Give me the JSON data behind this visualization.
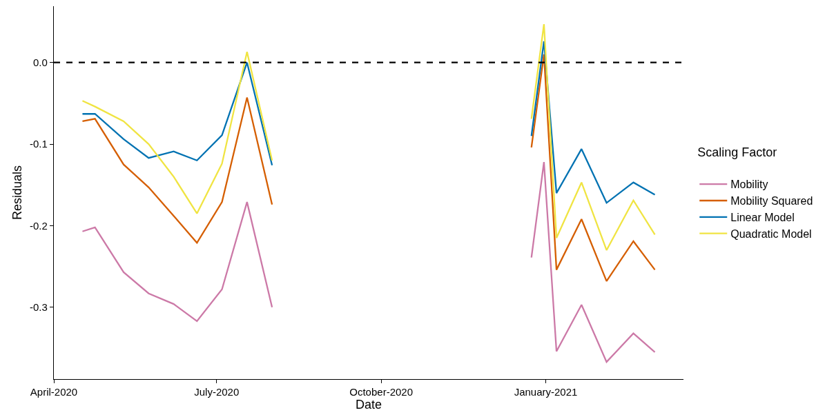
{
  "chart_data": {
    "type": "line",
    "xlabel": "Date",
    "ylabel": "Residuals",
    "legend_title": "Scaling Factor",
    "legend": "right",
    "x": [
      "2020-04-17",
      "2020-04-24",
      "2020-05-10",
      "2020-05-24",
      "2020-06-07",
      "2020-06-20",
      "2020-07-04",
      "2020-07-18",
      "2020-08-01",
      "2020-08-15",
      "2020-12-24",
      "2020-12-31",
      "2021-01-07",
      "2021-01-21",
      "2021-02-04",
      "2021-02-19",
      "2021-03-03"
    ],
    "series": [
      {
        "name": "Mobility",
        "color": "#cc79a7",
        "values": [
          -0.207,
          -0.202,
          -0.257,
          -0.283,
          -0.296,
          -0.317,
          -0.278,
          -0.171,
          -0.3,
          null,
          -0.239,
          -0.122,
          -0.354,
          -0.297,
          -0.367,
          -0.332,
          -0.355
        ]
      },
      {
        "name": "Mobility Squared",
        "color": "#d55e00",
        "values": [
          -0.072,
          -0.069,
          -0.125,
          -0.153,
          -0.188,
          -0.221,
          -0.171,
          -0.043,
          -0.174,
          null,
          -0.104,
          0.01,
          -0.254,
          -0.192,
          -0.268,
          -0.219,
          -0.254
        ]
      },
      {
        "name": "Linear Model",
        "color": "#0072b2",
        "values": [
          -0.063,
          -0.063,
          -0.094,
          -0.117,
          -0.109,
          -0.12,
          -0.089,
          0.0,
          -0.126,
          null,
          -0.09,
          0.026,
          -0.16,
          -0.106,
          -0.172,
          -0.147,
          -0.162
        ]
      },
      {
        "name": "Quadratic Model",
        "color": "#f0e442",
        "values": [
          -0.047,
          -0.054,
          -0.072,
          -0.1,
          -0.14,
          -0.185,
          -0.124,
          0.013,
          -0.12,
          null,
          -0.069,
          0.047,
          -0.215,
          -0.147,
          -0.23,
          -0.169,
          -0.211
        ]
      }
    ],
    "xlim": [
      "2020-04-01",
      "2021-03-19"
    ],
    "xticks": [
      {
        "value": "2020-04-01",
        "label": "April-2020"
      },
      {
        "value": "2020-07-01",
        "label": "July-2020"
      },
      {
        "value": "2020-10-01",
        "label": "October-2020"
      },
      {
        "value": "2021-01-01",
        "label": "January-2021"
      }
    ],
    "ylim": [
      -0.388,
      0.069
    ],
    "yticks": [
      {
        "value": 0,
        "label": "0.0"
      },
      -0.1,
      -0.2,
      -0.3
    ],
    "ref_lines": [
      {
        "axis": "y",
        "value": 0,
        "color": "#000000",
        "line_style": "dashed"
      }
    ]
  }
}
